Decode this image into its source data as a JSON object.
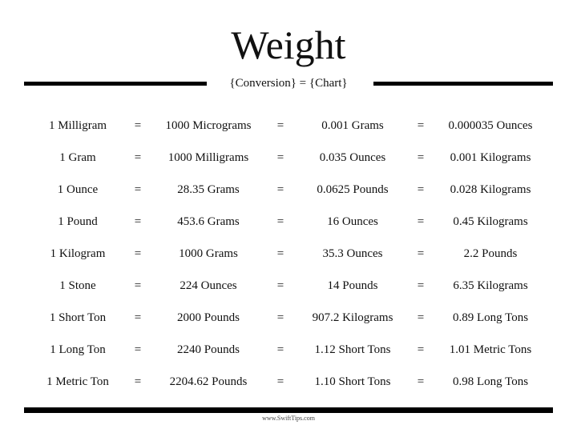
{
  "title": "Weight",
  "subtitle": "{Conversion} = {Chart}",
  "rows": [
    [
      "1 Milligram",
      "=",
      "1000 Micrograms",
      "=",
      "0.001 Grams",
      "=",
      "0.000035 Ounces"
    ],
    [
      "1 Gram",
      "=",
      "1000 Milligrams",
      "=",
      "0.035 Ounces",
      "=",
      "0.001 Kilograms"
    ],
    [
      "1 Ounce",
      "=",
      "28.35 Grams",
      "=",
      "0.0625 Pounds",
      "=",
      "0.028 Kilograms"
    ],
    [
      "1 Pound",
      "=",
      "453.6 Grams",
      "=",
      "16 Ounces",
      "=",
      "0.45 Kilograms"
    ],
    [
      "1 Kilogram",
      "=",
      "1000 Grams",
      "=",
      "35.3 Ounces",
      "=",
      "2.2 Pounds"
    ],
    [
      "1 Stone",
      "=",
      "224 Ounces",
      "=",
      "14 Pounds",
      "=",
      "6.35 Kilograms"
    ],
    [
      "1 Short Ton",
      "=",
      "2000 Pounds",
      "=",
      "907.2 Kilograms",
      "=",
      "0.89 Long Tons"
    ],
    [
      "1 Long Ton",
      "=",
      "2240 Pounds",
      "=",
      "1.12 Short Tons",
      "=",
      "1.01 Metric Tons"
    ],
    [
      "1 Metric Ton",
      "=",
      "2204.62 Pounds",
      "=",
      "1.10 Short Tons",
      "=",
      "0.98 Long Tons"
    ]
  ],
  "footer": "www.SwiftTips.com"
}
